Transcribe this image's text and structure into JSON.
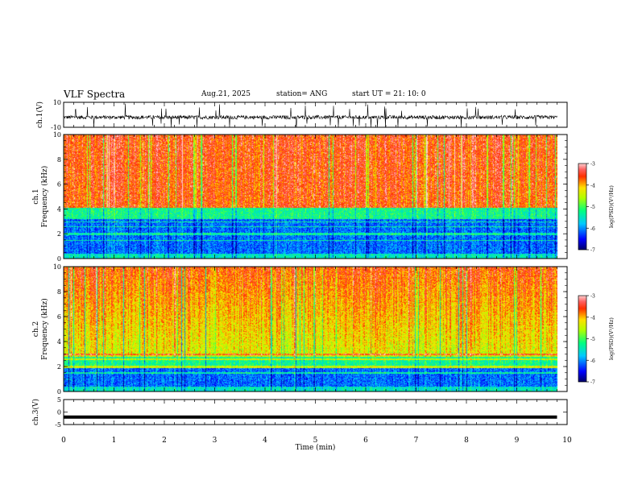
{
  "header": {
    "title": "VLF Spectra",
    "date": "Aug.21, 2025",
    "station": "station= ANG",
    "start": "start  UT  =   21: 10: 0"
  },
  "colorbar": {
    "label": "log(PSD)(V²/Hz)",
    "ticks": [
      -3,
      -4,
      -5,
      -6,
      -7
    ],
    "range": [
      -7,
      -3
    ]
  },
  "chart_data": [
    {
      "type": "line",
      "name": "ch1-waveform",
      "ylabel": "ch.1(V)",
      "ylim": [
        -10,
        10
      ],
      "yticks": [
        10,
        -10
      ],
      "xlim": [
        0,
        10
      ],
      "description_level": "noisy waveform around -2 V with spikes"
    },
    {
      "type": "heatmap",
      "name": "ch1-spectrogram",
      "ylabel": "ch.1 Frequency (kHz)",
      "ylabel_line1": "ch.1",
      "ylabel_line2": "Frequency  (kHz)",
      "ylim": [
        0,
        10
      ],
      "yticks": [
        0,
        2,
        4,
        6,
        8,
        10
      ],
      "xlim": [
        0,
        10
      ],
      "zlim": [
        -7,
        -3
      ]
    },
    {
      "type": "heatmap",
      "name": "ch2-spectrogram",
      "ylabel": "ch.2 Frequency (kHz)",
      "ylabel_line1": "ch.2",
      "ylabel_line2": "Frequency  (kHz)",
      "ylim": [
        0,
        10
      ],
      "yticks": [
        0,
        2,
        4,
        6,
        8,
        10
      ],
      "xlim": [
        0,
        10
      ],
      "zlim": [
        -7,
        -3
      ]
    },
    {
      "type": "line",
      "name": "ch3-waveform",
      "ylabel": "ch.3(V)",
      "ylim": [
        -5,
        5
      ],
      "yticks": [
        5,
        0,
        -5
      ],
      "xlim": [
        0,
        10
      ],
      "level": -2
    }
  ],
  "xaxis": {
    "label": "Time  (min)",
    "ticks": [
      0,
      1,
      2,
      3,
      4,
      5,
      6,
      7,
      8,
      9,
      10
    ],
    "data_end": 9.8
  }
}
